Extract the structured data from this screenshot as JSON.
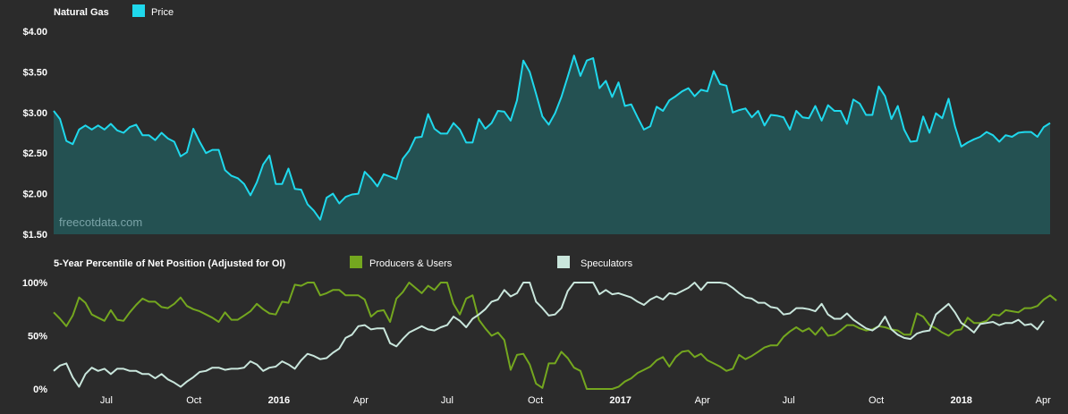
{
  "colors": {
    "background": "#2b2b2b",
    "price": "#1fd8ec",
    "price_fill": "#245152",
    "producers": "#74a71f",
    "speculators": "#c9e6dc",
    "axis_text": "#ffffff",
    "watermark": "#7aa3a7"
  },
  "watermark": "freecotdata.com",
  "x_ticks": [
    {
      "label": "Jul",
      "bold": false,
      "i": 8.3
    },
    {
      "label": "Oct",
      "bold": false,
      "i": 22.1
    },
    {
      "label": "2016",
      "bold": true,
      "i": 35.5
    },
    {
      "label": "Apr",
      "bold": false,
      "i": 48.4
    },
    {
      "label": "Jul",
      "bold": false,
      "i": 62.0
    },
    {
      "label": "Oct",
      "bold": false,
      "i": 75.9
    },
    {
      "label": "2017",
      "bold": true,
      "i": 89.3
    },
    {
      "label": "Apr",
      "bold": false,
      "i": 102.2
    },
    {
      "label": "Jul",
      "bold": false,
      "i": 115.8
    },
    {
      "label": "Oct",
      "bold": false,
      "i": 129.6
    },
    {
      "label": "2018",
      "bold": true,
      "i": 143.0
    },
    {
      "label": "Apr",
      "bold": false,
      "i": 155.9
    }
  ],
  "chart_data": [
    {
      "type": "area",
      "title": "Natural Gas",
      "series": [
        {
          "name": "Price",
          "values": [
            3.02,
            2.92,
            2.65,
            2.61,
            2.79,
            2.84,
            2.79,
            2.84,
            2.79,
            2.86,
            2.78,
            2.75,
            2.82,
            2.85,
            2.72,
            2.72,
            2.66,
            2.75,
            2.68,
            2.64,
            2.46,
            2.51,
            2.8,
            2.64,
            2.5,
            2.54,
            2.54,
            2.29,
            2.22,
            2.19,
            2.12,
            1.98,
            2.14,
            2.36,
            2.47,
            2.12,
            2.12,
            2.31,
            2.06,
            2.05,
            1.87,
            1.79,
            1.68,
            1.95,
            2.0,
            1.88,
            1.96,
            1.99,
            2.0,
            2.27,
            2.19,
            2.09,
            2.24,
            2.21,
            2.18,
            2.43,
            2.53,
            2.69,
            2.7,
            2.98,
            2.8,
            2.74,
            2.74,
            2.87,
            2.79,
            2.63,
            2.63,
            2.92,
            2.8,
            2.87,
            3.02,
            3.01,
            2.9,
            3.15,
            3.64,
            3.5,
            3.23,
            2.95,
            2.85,
            2.99,
            3.19,
            3.44,
            3.7,
            3.45,
            3.64,
            3.67,
            3.3,
            3.39,
            3.19,
            3.37,
            3.08,
            3.1,
            2.94,
            2.79,
            2.83,
            3.07,
            3.02,
            3.15,
            3.2,
            3.26,
            3.3,
            3.2,
            3.28,
            3.26,
            3.51,
            3.35,
            3.33,
            3.0,
            3.03,
            3.05,
            2.94,
            3.02,
            2.84,
            2.97,
            2.96,
            2.94,
            2.79,
            3.02,
            2.94,
            2.93,
            3.08,
            2.9,
            3.09,
            3.02,
            3.02,
            2.86,
            3.16,
            3.11,
            2.97,
            2.97,
            3.32,
            3.2,
            2.92,
            3.08,
            2.79,
            2.64,
            2.65,
            2.95,
            2.75,
            2.99,
            2.93,
            3.17,
            2.83,
            2.58,
            2.63,
            2.67,
            2.7,
            2.76,
            2.72,
            2.64,
            2.72,
            2.7,
            2.75,
            2.76,
            2.76,
            2.7,
            2.82,
            2.87
          ]
        }
      ],
      "ylim": [
        1.5,
        4.0
      ],
      "y_ticks": [
        "$1.50",
        "$2.00",
        "$2.50",
        "$3.00",
        "$3.50",
        "$4.00"
      ],
      "grid": false,
      "legend": "top-left"
    },
    {
      "type": "line",
      "title": "5-Year Percentile of Net Position (Adjusted for OI)",
      "series": [
        {
          "name": "Producers & Users",
          "values": [
            72,
            66,
            59,
            69,
            86,
            81,
            70,
            67,
            64,
            74,
            65,
            64,
            72,
            79,
            85,
            82,
            82,
            77,
            76,
            80,
            86,
            78,
            75,
            73,
            70,
            67,
            63,
            72,
            65,
            65,
            69,
            73,
            80,
            75,
            71,
            70,
            82,
            81,
            98,
            97,
            100,
            100,
            88,
            90,
            93,
            93,
            88,
            88,
            88,
            84,
            68,
            73,
            74,
            63,
            85,
            91,
            100,
            95,
            90,
            97,
            93,
            100,
            100,
            80,
            70,
            85,
            88,
            65,
            57,
            50,
            53,
            46,
            18,
            32,
            33,
            23,
            5,
            1,
            24,
            24,
            35,
            29,
            20,
            17,
            0,
            0,
            0,
            0,
            0,
            2,
            7,
            10,
            15,
            18,
            21,
            27,
            30,
            21,
            30,
            35,
            36,
            30,
            33,
            27,
            24,
            21,
            17,
            19,
            32,
            28,
            31,
            35,
            39,
            41,
            41,
            49,
            54,
            58,
            54,
            57,
            51,
            58,
            50,
            51,
            55,
            60,
            60,
            57,
            55,
            56,
            59,
            58,
            56,
            55,
            51,
            51,
            71,
            68,
            60,
            57,
            53,
            50,
            55,
            56,
            67,
            62,
            62,
            64,
            70,
            69,
            74,
            73,
            72,
            76,
            76,
            78,
            84,
            88,
            83
          ]
        },
        {
          "name": "Speculators",
          "values": [
            17,
            22,
            24,
            11,
            2,
            14,
            20,
            17,
            19,
            14,
            19,
            19,
            17,
            17,
            14,
            14,
            10,
            14,
            9,
            6,
            2,
            7,
            11,
            16,
            17,
            20,
            20,
            18,
            19,
            19,
            20,
            26,
            23,
            17,
            20,
            21,
            26,
            23,
            19,
            27,
            33,
            31,
            28,
            29,
            34,
            38,
            48,
            51,
            59,
            60,
            56,
            57,
            57,
            43,
            40,
            47,
            53,
            56,
            59,
            56,
            55,
            58,
            60,
            68,
            64,
            58,
            66,
            70,
            75,
            82,
            84,
            93,
            87,
            90,
            100,
            100,
            82,
            76,
            69,
            70,
            76,
            92,
            100,
            100,
            100,
            100,
            89,
            93,
            89,
            90,
            88,
            86,
            82,
            79,
            84,
            87,
            84,
            90,
            89,
            92,
            95,
            100,
            93,
            100,
            100,
            100,
            99,
            95,
            90,
            86,
            85,
            81,
            81,
            77,
            76,
            70,
            71,
            76,
            76,
            75,
            73,
            80,
            70,
            66,
            66,
            71,
            65,
            61,
            57,
            55,
            59,
            68,
            56,
            51,
            48,
            47,
            52,
            54,
            55,
            70,
            75,
            80,
            72,
            62,
            58,
            53,
            61,
            62,
            63,
            60,
            62,
            62,
            65,
            60,
            61,
            56,
            64
          ]
        }
      ],
      "ylim": [
        0,
        100
      ],
      "y_ticks": [
        "0%",
        "50%",
        "100%"
      ],
      "grid": false,
      "legend": "top"
    }
  ]
}
